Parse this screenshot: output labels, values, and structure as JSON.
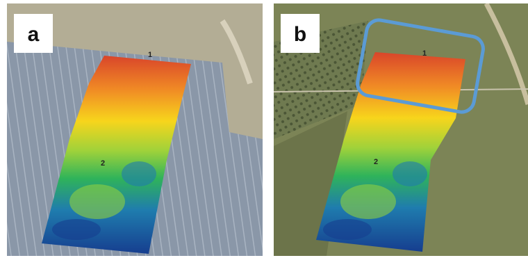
{
  "panels": [
    {
      "label": "a",
      "markers": [
        "1",
        "2"
      ]
    },
    {
      "label": "b",
      "markers": [
        "1",
        "2"
      ]
    }
  ]
}
